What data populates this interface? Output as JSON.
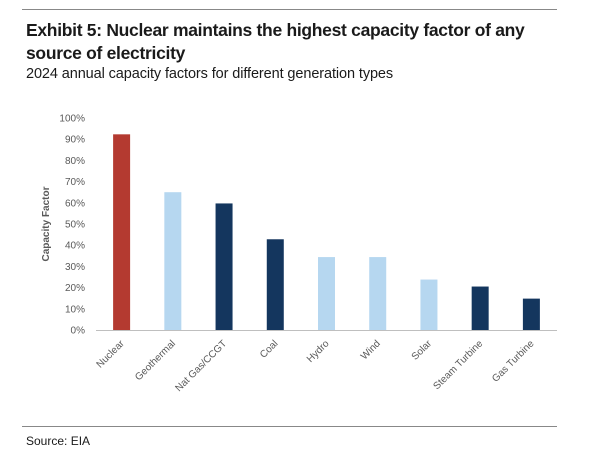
{
  "header": {
    "title": "Exhibit 5: Nuclear maintains the highest capacity factor of any source of electricity",
    "subtitle": "2024 annual capacity factors for different generation types"
  },
  "footer": {
    "source": "Source: EIA"
  },
  "colors": {
    "nuclear": "#b43a30",
    "light": "#b6d7f0",
    "dark": "#14365e",
    "axis": "#bfbfbf",
    "text": "#595959"
  },
  "chart_data": {
    "type": "bar",
    "title": "",
    "xlabel": "",
    "ylabel": "Capacity Factor",
    "ylim": [
      0,
      100
    ],
    "yticks": [
      0,
      10,
      20,
      30,
      40,
      50,
      60,
      70,
      80,
      90,
      100
    ],
    "ytick_labels": [
      "0%",
      "10%",
      "20%",
      "30%",
      "40%",
      "50%",
      "60%",
      "70%",
      "80%",
      "90%",
      "100%"
    ],
    "grid": false,
    "categories": [
      "Nuclear",
      "Geothermal",
      "Nat Gas/CCGT",
      "Coal",
      "Hydro",
      "Wind",
      "Solar",
      "Steam Turbine",
      "Gas Turbine"
    ],
    "values": [
      92.3,
      65.0,
      59.7,
      42.8,
      34.4,
      34.4,
      23.8,
      20.5,
      14.8
    ],
    "bar_colors": [
      "#b43a30",
      "#b6d7f0",
      "#14365e",
      "#14365e",
      "#b6d7f0",
      "#b6d7f0",
      "#b6d7f0",
      "#14365e",
      "#14365e"
    ]
  }
}
